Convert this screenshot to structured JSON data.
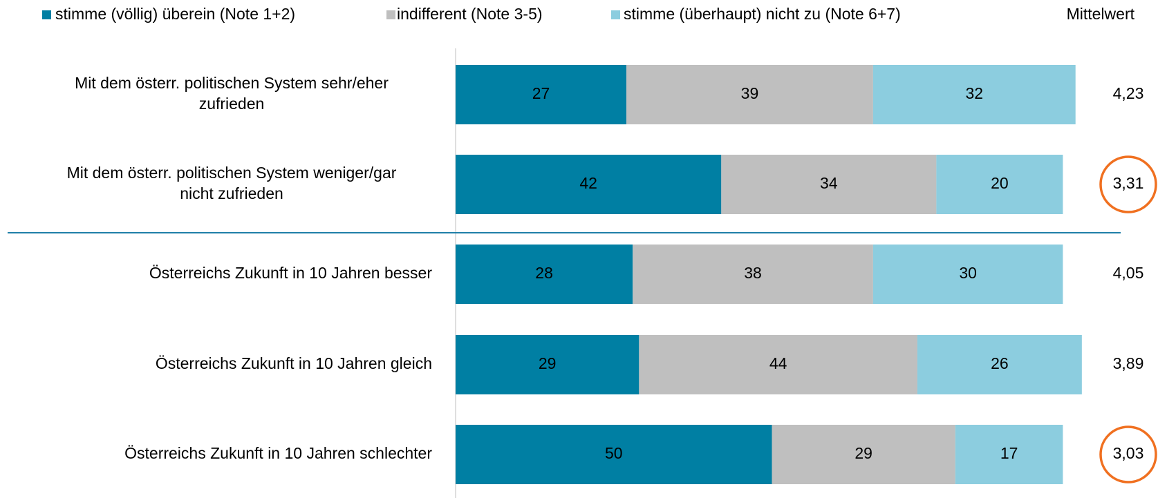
{
  "chart_data": {
    "type": "stacked-bar-horizontal",
    "categories": [
      [
        "Mit dem österr. politischen System sehr/eher",
        "zufrieden"
      ],
      [
        "Mit dem österr. politischen System weniger/gar",
        "nicht zufrieden"
      ],
      [
        "Österreichs Zukunft in 10 Jahren besser"
      ],
      [
        "Österreichs Zukunft in 10 Jahren gleich"
      ],
      [
        "Österreichs Zukunft in 10 Jahren schlechter"
      ]
    ],
    "series": [
      {
        "name": "stimme (völlig) überein (Note 1+2)",
        "color": "#007fa3",
        "label_color": "#ffffff",
        "values": [
          27,
          42,
          28,
          29,
          50
        ]
      },
      {
        "name": "indifferent (Note 3-5)",
        "color": "#bfbfbf",
        "label_color": "#000000",
        "values": [
          39,
          34,
          38,
          44,
          29
        ]
      },
      {
        "name": "stimme (überhaupt) nicht zu (Note 6+7)",
        "color": "#8ccddf",
        "label_color": "#000000",
        "values": [
          32,
          20,
          30,
          26,
          17
        ]
      }
    ],
    "means": {
      "name": "Mittelwert",
      "values": [
        4.23,
        3.31,
        4.05,
        3.89,
        3.03
      ],
      "value_labels": [
        "4,23",
        "3,31",
        "4,05",
        "3,89",
        "3,03"
      ],
      "highlighted": [
        false,
        true,
        false,
        false,
        true
      ],
      "highlight_color": "#f07020"
    },
    "xlim": [
      0,
      100
    ]
  }
}
